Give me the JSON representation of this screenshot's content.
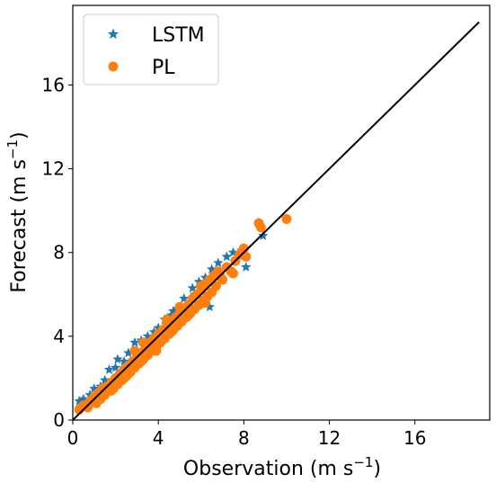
{
  "chart_data": {
    "type": "scatter",
    "xlabel": "Observation (m s",
    "ylabel": "Forecast (m s",
    "axis_unit_exponent": "−1",
    "axis_unit_close": ")",
    "xlim": [
      0,
      19.5
    ],
    "ylim": [
      0,
      19.8
    ],
    "xticks": [
      0,
      4,
      8,
      12,
      16
    ],
    "yticks": [
      0,
      4,
      8,
      12,
      16
    ],
    "grid": false,
    "legend_position": "top-left",
    "reference_line": {
      "x": [
        0,
        19
      ],
      "y": [
        0,
        19
      ],
      "color": "#000000"
    },
    "colors": {
      "LSTM": "#1f77b4",
      "PL": "#ff7f0e"
    },
    "series": [
      {
        "name": "LSTM",
        "marker": "star",
        "points": [
          [
            0.3,
            0.9
          ],
          [
            0.5,
            1.0
          ],
          [
            0.8,
            1.2
          ],
          [
            1.0,
            1.5
          ],
          [
            1.3,
            1.6
          ],
          [
            1.5,
            1.9
          ],
          [
            1.7,
            2.4
          ],
          [
            2.0,
            2.5
          ],
          [
            2.1,
            2.9
          ],
          [
            2.4,
            2.8
          ],
          [
            2.6,
            3.2
          ],
          [
            2.9,
            3.7
          ],
          [
            3.2,
            3.8
          ],
          [
            3.5,
            4.0
          ],
          [
            3.8,
            4.2
          ],
          [
            4.0,
            4.4
          ],
          [
            4.3,
            4.8
          ],
          [
            4.6,
            5.0
          ],
          [
            4.9,
            5.3
          ],
          [
            5.2,
            5.8
          ],
          [
            5.6,
            6.3
          ],
          [
            5.9,
            6.6
          ],
          [
            6.2,
            6.8
          ],
          [
            6.5,
            7.2
          ],
          [
            6.8,
            7.5
          ],
          [
            7.2,
            7.8
          ],
          [
            7.5,
            8.0
          ],
          [
            7.9,
            8.1
          ],
          [
            8.1,
            7.3
          ],
          [
            6.4,
            5.4
          ],
          [
            5.0,
            4.9
          ],
          [
            4.1,
            3.9
          ],
          [
            3.0,
            2.9
          ],
          [
            2.2,
            2.1
          ],
          [
            1.1,
            0.9
          ],
          [
            8.9,
            8.8
          ],
          [
            10.0,
            9.6
          ],
          [
            3.3,
            3.6
          ],
          [
            4.7,
            5.2
          ],
          [
            5.7,
            6.0
          ]
        ]
      },
      {
        "name": "PL",
        "marker": "circle",
        "points": [
          [
            0.3,
            0.5
          ],
          [
            0.5,
            0.7
          ],
          [
            0.7,
            0.6
          ],
          [
            0.8,
            0.9
          ],
          [
            1.0,
            1.1
          ],
          [
            1.1,
            0.8
          ],
          [
            1.2,
            1.3
          ],
          [
            1.3,
            1.0
          ],
          [
            1.4,
            1.5
          ],
          [
            1.5,
            1.2
          ],
          [
            1.6,
            1.6
          ],
          [
            1.7,
            1.4
          ],
          [
            1.8,
            1.8
          ],
          [
            1.9,
            1.5
          ],
          [
            2.0,
            2.0
          ],
          [
            2.1,
            1.7
          ],
          [
            2.2,
            2.2
          ],
          [
            2.3,
            1.9
          ],
          [
            2.4,
            2.4
          ],
          [
            2.5,
            2.1
          ],
          [
            2.6,
            2.6
          ],
          [
            2.7,
            2.3
          ],
          [
            2.8,
            2.8
          ],
          [
            2.9,
            2.5
          ],
          [
            3.0,
            3.0
          ],
          [
            3.1,
            2.7
          ],
          [
            3.2,
            3.2
          ],
          [
            3.3,
            2.9
          ],
          [
            3.4,
            3.5
          ],
          [
            3.5,
            3.1
          ],
          [
            3.6,
            3.7
          ],
          [
            3.7,
            3.3
          ],
          [
            3.8,
            3.9
          ],
          [
            3.9,
            3.5
          ],
          [
            4.0,
            4.1
          ],
          [
            4.1,
            3.7
          ],
          [
            4.2,
            4.3
          ],
          [
            4.3,
            3.9
          ],
          [
            4.4,
            4.5
          ],
          [
            4.5,
            4.1
          ],
          [
            4.6,
            4.7
          ],
          [
            4.7,
            4.3
          ],
          [
            4.8,
            4.9
          ],
          [
            4.9,
            4.5
          ],
          [
            5.0,
            5.1
          ],
          [
            5.1,
            4.7
          ],
          [
            5.2,
            5.3
          ],
          [
            5.3,
            4.9
          ],
          [
            5.4,
            5.5
          ],
          [
            5.5,
            5.1
          ],
          [
            5.6,
            5.8
          ],
          [
            5.7,
            5.3
          ],
          [
            5.8,
            6.0
          ],
          [
            5.9,
            5.5
          ],
          [
            6.0,
            6.2
          ],
          [
            6.1,
            5.7
          ],
          [
            6.2,
            6.5
          ],
          [
            6.3,
            5.9
          ],
          [
            6.4,
            6.7
          ],
          [
            6.5,
            6.1
          ],
          [
            6.6,
            6.9
          ],
          [
            6.7,
            6.4
          ],
          [
            6.8,
            7.1
          ],
          [
            7.0,
            6.7
          ],
          [
            7.2,
            7.3
          ],
          [
            7.4,
            7.1
          ],
          [
            7.6,
            7.6
          ],
          [
            7.8,
            7.9
          ],
          [
            8.0,
            8.2
          ],
          [
            8.1,
            7.8
          ],
          [
            7.5,
            7.0
          ],
          [
            6.9,
            6.9
          ],
          [
            6.2,
            5.6
          ],
          [
            5.4,
            5.0
          ],
          [
            4.6,
            4.2
          ],
          [
            3.9,
            3.3
          ],
          [
            3.2,
            2.8
          ],
          [
            2.6,
            2.2
          ],
          [
            2.4,
            2.0
          ],
          [
            1.8,
            1.4
          ],
          [
            1.5,
            1.3
          ],
          [
            2.9,
            3.3
          ],
          [
            3.3,
            3.7
          ],
          [
            4.4,
            4.8
          ],
          [
            5.0,
            5.4
          ],
          [
            6.0,
            6.4
          ],
          [
            8.7,
            9.4
          ],
          [
            8.8,
            9.2
          ],
          [
            10.0,
            9.6
          ],
          [
            0.9,
            0.9
          ]
        ]
      }
    ],
    "legend": [
      {
        "label": "LSTM",
        "marker": "star"
      },
      {
        "label": "PL",
        "marker": "circle"
      }
    ]
  }
}
